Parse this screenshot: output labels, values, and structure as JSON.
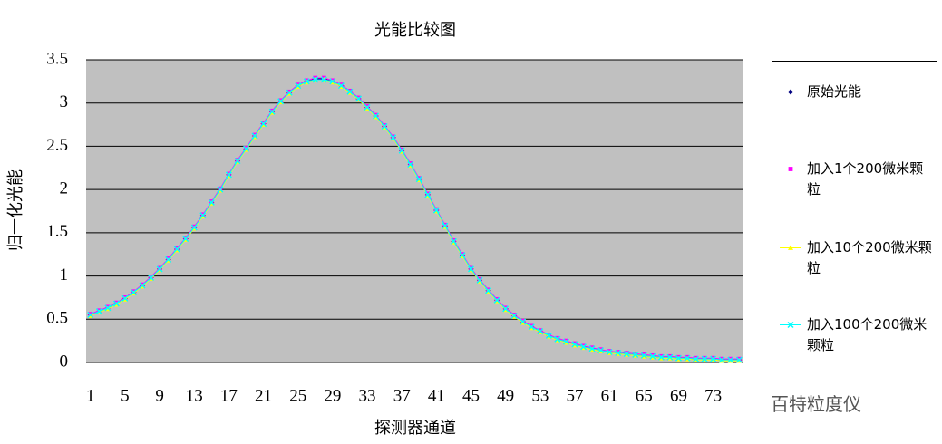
{
  "chart_data": {
    "type": "line",
    "title": "光能比较图",
    "x_label": "探测器通道",
    "y_label": "归一化光能",
    "watermark": "百特粒度仪",
    "categories": [
      "1",
      null,
      null,
      null,
      "5",
      null,
      null,
      null,
      "9",
      null,
      null,
      null,
      "13",
      null,
      null,
      null,
      "17",
      null,
      null,
      null,
      "21",
      null,
      null,
      null,
      "25",
      null,
      null,
      null,
      "29",
      null,
      null,
      null,
      "33",
      null,
      null,
      null,
      "37",
      null,
      null,
      null,
      "41",
      null,
      null,
      null,
      "45",
      null,
      null,
      null,
      "49",
      null,
      null,
      null,
      "53",
      null,
      null,
      null,
      "57",
      null,
      null,
      null,
      "61",
      null,
      null,
      null,
      "65",
      null,
      null,
      null,
      "69",
      null,
      null,
      null,
      "73",
      null,
      null,
      null
    ],
    "ylim": [
      0,
      3.5
    ],
    "yticks": [
      0,
      0.5,
      1,
      1.5,
      2,
      2.5,
      3,
      3.5
    ],
    "grid": true,
    "plot_background": "#c0c0c0",
    "series": [
      {
        "name": "原始光能",
        "color": "#000080",
        "marker": "diamond",
        "values": [
          0.55,
          0.59,
          0.63,
          0.68,
          0.74,
          0.81,
          0.89,
          0.98,
          1.08,
          1.19,
          1.31,
          1.43,
          1.56,
          1.7,
          1.85,
          2.0,
          2.17,
          2.33,
          2.47,
          2.62,
          2.76,
          2.9,
          3.02,
          3.12,
          3.2,
          3.25,
          3.28,
          3.28,
          3.25,
          3.2,
          3.13,
          3.05,
          2.95,
          2.85,
          2.73,
          2.6,
          2.45,
          2.29,
          2.12,
          1.94,
          1.76,
          1.58,
          1.4,
          1.24,
          1.08,
          0.95,
          0.83,
          0.72,
          0.62,
          0.54,
          0.47,
          0.41,
          0.36,
          0.31,
          0.27,
          0.24,
          0.21,
          0.18,
          0.16,
          0.14,
          0.12,
          0.11,
          0.1,
          0.09,
          0.08,
          0.07,
          0.06,
          0.06,
          0.05,
          0.05,
          0.04,
          0.04,
          0.04,
          0.03,
          0.03,
          0.03
        ]
      },
      {
        "name": "加入1个200微米颗粒",
        "color": "#ff00ff",
        "marker": "square",
        "values": [
          0.56,
          0.6,
          0.64,
          0.69,
          0.75,
          0.82,
          0.9,
          0.99,
          1.09,
          1.2,
          1.32,
          1.44,
          1.57,
          1.71,
          1.86,
          2.01,
          2.18,
          2.34,
          2.48,
          2.63,
          2.77,
          2.91,
          3.03,
          3.13,
          3.21,
          3.26,
          3.29,
          3.29,
          3.26,
          3.21,
          3.14,
          3.06,
          2.96,
          2.86,
          2.74,
          2.61,
          2.46,
          2.3,
          2.13,
          1.95,
          1.77,
          1.59,
          1.41,
          1.25,
          1.09,
          0.96,
          0.84,
          0.73,
          0.63,
          0.55,
          0.48,
          0.42,
          0.37,
          0.32,
          0.28,
          0.25,
          0.22,
          0.19,
          0.17,
          0.15,
          0.13,
          0.12,
          0.11,
          0.1,
          0.09,
          0.08,
          0.07,
          0.07,
          0.06,
          0.06,
          0.05,
          0.05,
          0.05,
          0.04,
          0.04,
          0.04
        ]
      },
      {
        "name": "加入10个200微米颗粒",
        "color": "#ffff00",
        "marker": "triangle",
        "values": [
          0.54,
          0.58,
          0.62,
          0.67,
          0.73,
          0.8,
          0.88,
          0.97,
          1.07,
          1.18,
          1.3,
          1.42,
          1.55,
          1.69,
          1.84,
          1.99,
          2.16,
          2.32,
          2.46,
          2.61,
          2.75,
          2.89,
          3.01,
          3.11,
          3.19,
          3.24,
          3.27,
          3.27,
          3.24,
          3.19,
          3.12,
          3.04,
          2.94,
          2.84,
          2.72,
          2.59,
          2.44,
          2.28,
          2.11,
          1.93,
          1.75,
          1.57,
          1.39,
          1.23,
          1.07,
          0.94,
          0.82,
          0.71,
          0.61,
          0.53,
          0.46,
          0.4,
          0.35,
          0.3,
          0.26,
          0.23,
          0.2,
          0.17,
          0.15,
          0.13,
          0.11,
          0.1,
          0.09,
          0.08,
          0.07,
          0.06,
          0.05,
          0.05,
          0.04,
          0.04,
          0.03,
          0.03,
          0.03,
          0.02,
          0.02,
          0.02
        ]
      },
      {
        "name": "加入100个200微米颗粒",
        "color": "#00ffff",
        "marker": "x",
        "values": [
          0.55,
          0.59,
          0.63,
          0.68,
          0.74,
          0.81,
          0.89,
          0.98,
          1.08,
          1.19,
          1.31,
          1.43,
          1.56,
          1.7,
          1.85,
          2.0,
          2.17,
          2.33,
          2.47,
          2.62,
          2.76,
          2.9,
          3.02,
          3.12,
          3.2,
          3.25,
          3.27,
          3.27,
          3.25,
          3.2,
          3.13,
          3.05,
          2.95,
          2.85,
          2.73,
          2.6,
          2.45,
          2.29,
          2.12,
          1.94,
          1.76,
          1.58,
          1.4,
          1.24,
          1.08,
          0.95,
          0.83,
          0.72,
          0.62,
          0.54,
          0.47,
          0.41,
          0.36,
          0.31,
          0.27,
          0.24,
          0.21,
          0.18,
          0.16,
          0.14,
          0.12,
          0.11,
          0.1,
          0.09,
          0.08,
          0.07,
          0.06,
          0.06,
          0.05,
          0.05,
          0.04,
          0.04,
          0.04,
          0.03,
          0.03,
          0.03
        ]
      }
    ]
  }
}
